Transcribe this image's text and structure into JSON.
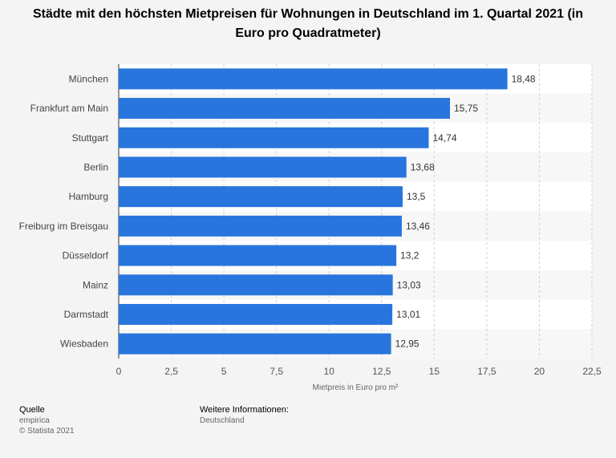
{
  "title": "Städte mit den höchsten Mietpreisen für Wohnungen in Deutschland im 1. Quartal 2021 (in Euro pro Quadratmeter)",
  "chart_data": {
    "type": "bar",
    "orientation": "horizontal",
    "title": "Städte mit den höchsten Mietpreisen für Wohnungen in Deutschland im 1. Quartal 2021 (in Euro pro Quadratmeter)",
    "categories": [
      "München",
      "Frankfurt am Main",
      "Stuttgart",
      "Berlin",
      "Hamburg",
      "Freiburg im Breisgau",
      "Düsseldorf",
      "Mainz",
      "Darmstadt",
      "Wiesbaden"
    ],
    "values": [
      18.48,
      15.75,
      14.74,
      13.68,
      13.5,
      13.46,
      13.2,
      13.03,
      13.01,
      12.95
    ],
    "value_labels": [
      "18,48",
      "15,75",
      "14,74",
      "13,68",
      "13,5",
      "13,46",
      "13,2",
      "13,03",
      "13,01",
      "12,95"
    ],
    "xlabel": "Mietpreis in Euro pro m²",
    "ylabel": "",
    "xlim": [
      0,
      22.5
    ],
    "xticks": [
      0,
      2.5,
      5,
      7.5,
      10,
      12.5,
      15,
      17.5,
      20,
      22.5
    ],
    "xtick_labels": [
      "0",
      "2,5",
      "5",
      "7,5",
      "10",
      "12,5",
      "15",
      "17,5",
      "20",
      "22,5"
    ],
    "grid": true,
    "bar_color": "#2876dd"
  },
  "footer": {
    "source_heading": "Quelle",
    "source_name": "empirica",
    "copyright": "© Statista 2021",
    "info_heading": "Weitere Informationen:",
    "info_text": "Deutschland"
  }
}
